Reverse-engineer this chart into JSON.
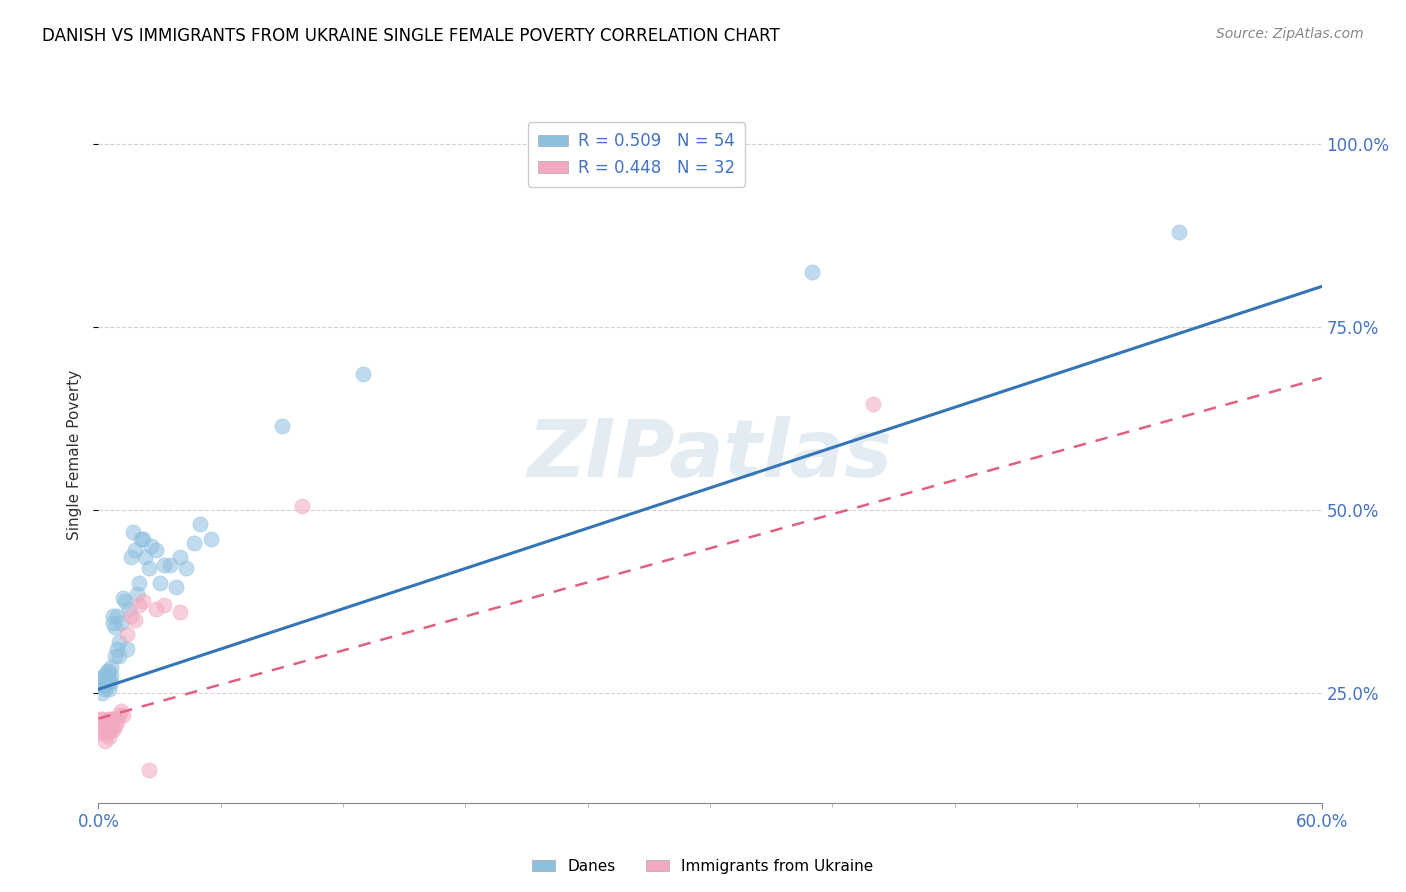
{
  "title": "DANISH VS IMMIGRANTS FROM UKRAINE SINGLE FEMALE POVERTY CORRELATION CHART",
  "source": "Source: ZipAtlas.com",
  "ylabel": "Single Female Poverty",
  "watermark": "ZIPatlas",
  "danes_color": "#8dbfdf",
  "ukraine_color": "#f2a8be",
  "danes_line_color": "#3575b5",
  "ukraine_line_color": "#e06080",
  "background_color": "#ffffff",
  "grid_color": "#d0d0d0",
  "danes_x": [
    0.001,
    0.001,
    0.002,
    0.002,
    0.002,
    0.003,
    0.003,
    0.003,
    0.004,
    0.004,
    0.004,
    0.005,
    0.005,
    0.005,
    0.006,
    0.006,
    0.006,
    0.007,
    0.007,
    0.008,
    0.008,
    0.009,
    0.009,
    0.01,
    0.01,
    0.011,
    0.012,
    0.013,
    0.014,
    0.015,
    0.016,
    0.017,
    0.018,
    0.019,
    0.02,
    0.021,
    0.022,
    0.023,
    0.025,
    0.026,
    0.028,
    0.03,
    0.032,
    0.035,
    0.038,
    0.04,
    0.043,
    0.047,
    0.05,
    0.055,
    0.09,
    0.13,
    0.35,
    0.53
  ],
  "danes_y": [
    0.26,
    0.27,
    0.25,
    0.265,
    0.27,
    0.255,
    0.265,
    0.275,
    0.26,
    0.27,
    0.28,
    0.255,
    0.27,
    0.28,
    0.265,
    0.275,
    0.285,
    0.345,
    0.355,
    0.3,
    0.34,
    0.31,
    0.355,
    0.3,
    0.32,
    0.345,
    0.38,
    0.375,
    0.31,
    0.365,
    0.435,
    0.47,
    0.445,
    0.385,
    0.4,
    0.46,
    0.46,
    0.435,
    0.42,
    0.45,
    0.445,
    0.4,
    0.425,
    0.425,
    0.395,
    0.435,
    0.42,
    0.455,
    0.48,
    0.46,
    0.615,
    0.685,
    0.825,
    0.88
  ],
  "ukraine_x": [
    0.001,
    0.001,
    0.002,
    0.002,
    0.003,
    0.003,
    0.004,
    0.004,
    0.005,
    0.005,
    0.005,
    0.006,
    0.006,
    0.007,
    0.007,
    0.008,
    0.008,
    0.009,
    0.01,
    0.011,
    0.012,
    0.014,
    0.016,
    0.018,
    0.02,
    0.022,
    0.025,
    0.028,
    0.032,
    0.04,
    0.1,
    0.38
  ],
  "ukraine_y": [
    0.2,
    0.215,
    0.195,
    0.215,
    0.185,
    0.205,
    0.195,
    0.21,
    0.19,
    0.205,
    0.215,
    0.2,
    0.215,
    0.2,
    0.215,
    0.205,
    0.215,
    0.21,
    0.22,
    0.225,
    0.22,
    0.33,
    0.355,
    0.35,
    0.37,
    0.375,
    0.145,
    0.365,
    0.37,
    0.36,
    0.505,
    0.645
  ],
  "xmin": 0.0,
  "xmax": 0.6,
  "ymin": 0.1,
  "ymax": 1.05,
  "danes_line_x0": 0.0,
  "danes_line_y0": 0.255,
  "danes_line_x1": 0.6,
  "danes_line_y1": 0.805,
  "ukraine_line_x0": 0.0,
  "ukraine_line_y0": 0.215,
  "ukraine_line_x1": 0.6,
  "ukraine_line_y1": 0.68
}
